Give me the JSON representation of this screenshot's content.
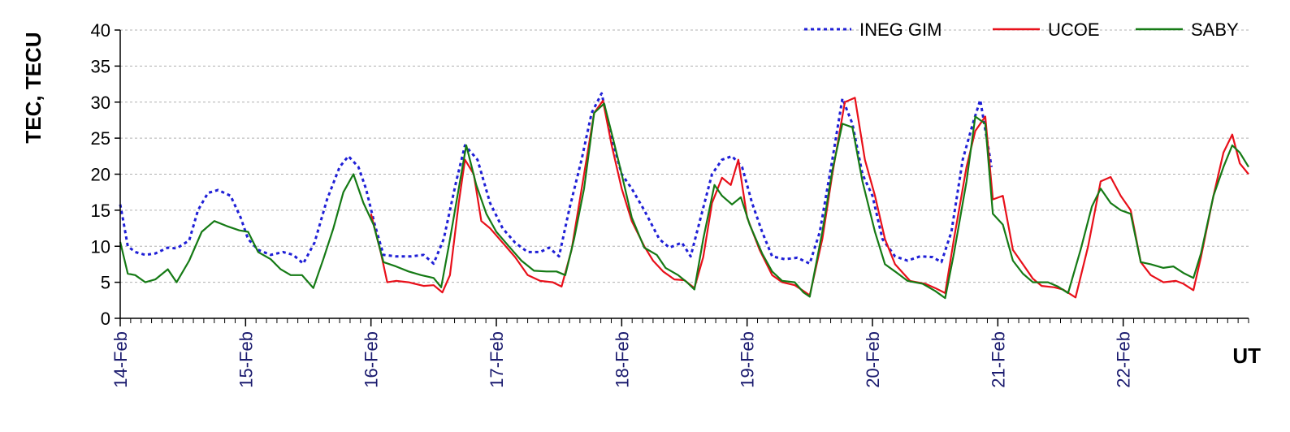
{
  "chart_data": {
    "type": "line",
    "ylabel": "TEC, TECU",
    "xlabel": "UT",
    "ylim": [
      0,
      40
    ],
    "yticks": [
      "0",
      "5",
      "10",
      "15",
      "20",
      "25",
      "30",
      "35",
      "40"
    ],
    "xlim": [
      0,
      9
    ],
    "xticks": [
      "14-Feb",
      "15-Feb",
      "16-Feb",
      "17-Feb",
      "18-Feb",
      "19-Feb",
      "20-Feb",
      "21-Feb",
      "22-Feb"
    ],
    "grid": "horizontal dashed",
    "legend_position": "top-right",
    "series": [
      {
        "name": "INEG GIM",
        "color": "#1f1fd6",
        "style": "dotted",
        "points": [
          [
            0,
            15.8
          ],
          [
            0.03,
            13
          ],
          [
            0.06,
            10
          ],
          [
            0.12,
            9.2
          ],
          [
            0.2,
            8.8
          ],
          [
            0.28,
            9
          ],
          [
            0.38,
            9.8
          ],
          [
            0.45,
            9.7
          ],
          [
            0.55,
            10.8
          ],
          [
            0.62,
            15
          ],
          [
            0.7,
            17.4
          ],
          [
            0.78,
            17.8
          ],
          [
            0.88,
            17
          ],
          [
            0.96,
            14
          ],
          [
            1.02,
            11
          ],
          [
            1.1,
            9.5
          ],
          [
            1.2,
            8.8
          ],
          [
            1.3,
            9.2
          ],
          [
            1.38,
            8.8
          ],
          [
            1.46,
            7.6
          ],
          [
            1.55,
            10.5
          ],
          [
            1.65,
            16.5
          ],
          [
            1.75,
            21
          ],
          [
            1.82,
            22.5
          ],
          [
            1.9,
            21
          ],
          [
            1.96,
            18
          ],
          [
            2.03,
            13
          ],
          [
            2.1,
            8.8
          ],
          [
            2.2,
            8.6
          ],
          [
            2.32,
            8.6
          ],
          [
            2.42,
            8.8
          ],
          [
            2.5,
            7.6
          ],
          [
            2.58,
            11
          ],
          [
            2.68,
            19
          ],
          [
            2.75,
            24
          ],
          [
            2.85,
            22
          ],
          [
            2.95,
            16
          ],
          [
            3.05,
            12.5
          ],
          [
            3.15,
            10.5
          ],
          [
            3.25,
            9.2
          ],
          [
            3.35,
            9.2
          ],
          [
            3.42,
            9.8
          ],
          [
            3.5,
            8.6
          ],
          [
            3.58,
            15
          ],
          [
            3.68,
            22
          ],
          [
            3.76,
            28.5
          ],
          [
            3.84,
            31.2
          ],
          [
            3.92,
            25
          ],
          [
            4.0,
            20
          ],
          [
            4.08,
            18
          ],
          [
            4.18,
            15
          ],
          [
            4.3,
            11
          ],
          [
            4.38,
            9.8
          ],
          [
            4.48,
            10.5
          ],
          [
            4.55,
            8.6
          ],
          [
            4.63,
            14
          ],
          [
            4.72,
            20
          ],
          [
            4.8,
            22
          ],
          [
            4.88,
            22.5
          ],
          [
            4.96,
            21
          ],
          [
            5.04,
            16
          ],
          [
            5.12,
            12
          ],
          [
            5.2,
            8.6
          ],
          [
            5.3,
            8.2
          ],
          [
            5.4,
            8.4
          ],
          [
            5.5,
            7.6
          ],
          [
            5.58,
            12
          ],
          [
            5.68,
            22
          ],
          [
            5.76,
            30.5
          ],
          [
            5.84,
            27
          ],
          [
            5.92,
            20
          ],
          [
            6.0,
            17
          ],
          [
            6.08,
            11
          ],
          [
            6.18,
            8.6
          ],
          [
            6.28,
            8
          ],
          [
            6.38,
            8.6
          ],
          [
            6.48,
            8.5
          ],
          [
            6.55,
            7.8
          ],
          [
            6.63,
            12
          ],
          [
            6.72,
            22
          ],
          [
            6.8,
            27
          ],
          [
            6.86,
            30.3
          ],
          [
            6.95,
            21
          ]
        ]
      },
      {
        "name": "UCOE",
        "color": "#e8101a",
        "style": "solid",
        "points": [
          [
            2.0,
            14.5
          ],
          [
            2.08,
            9
          ],
          [
            2.13,
            5
          ],
          [
            2.2,
            5.2
          ],
          [
            2.3,
            5
          ],
          [
            2.42,
            4.5
          ],
          [
            2.5,
            4.6
          ],
          [
            2.57,
            3.6
          ],
          [
            2.63,
            6
          ],
          [
            2.7,
            16
          ],
          [
            2.75,
            22
          ],
          [
            2.82,
            20
          ],
          [
            2.88,
            13.5
          ],
          [
            2.95,
            12.5
          ],
          [
            3.05,
            10.5
          ],
          [
            3.15,
            8.5
          ],
          [
            3.25,
            6
          ],
          [
            3.35,
            5.2
          ],
          [
            3.45,
            5
          ],
          [
            3.52,
            4.4
          ],
          [
            3.6,
            9.5
          ],
          [
            3.7,
            20
          ],
          [
            3.78,
            28.5
          ],
          [
            3.85,
            30.2
          ],
          [
            3.92,
            24
          ],
          [
            4.0,
            18
          ],
          [
            4.08,
            13.5
          ],
          [
            4.18,
            10
          ],
          [
            4.25,
            8
          ],
          [
            4.33,
            6.5
          ],
          [
            4.42,
            5.4
          ],
          [
            4.5,
            5.3
          ],
          [
            4.58,
            4.2
          ],
          [
            4.65,
            8.5
          ],
          [
            4.72,
            16
          ],
          [
            4.8,
            19.5
          ],
          [
            4.87,
            18.5
          ],
          [
            4.93,
            22
          ],
          [
            5.0,
            14
          ],
          [
            5.1,
            9.5
          ],
          [
            5.2,
            6
          ],
          [
            5.28,
            5
          ],
          [
            5.38,
            4.6
          ],
          [
            5.45,
            3.8
          ],
          [
            5.5,
            3.2
          ],
          [
            5.6,
            11
          ],
          [
            5.68,
            20
          ],
          [
            5.78,
            30
          ],
          [
            5.86,
            30.6
          ],
          [
            5.94,
            22
          ],
          [
            6.02,
            17
          ],
          [
            6.1,
            11
          ],
          [
            6.18,
            7.5
          ],
          [
            6.3,
            5.2
          ],
          [
            6.42,
            4.8
          ],
          [
            6.5,
            4.2
          ],
          [
            6.58,
            3.5
          ],
          [
            6.65,
            11
          ],
          [
            6.75,
            21
          ],
          [
            6.82,
            26
          ],
          [
            6.9,
            28
          ],
          [
            6.96,
            16.5
          ],
          [
            7.04,
            17
          ],
          [
            7.12,
            9.5
          ],
          [
            7.2,
            7.5
          ],
          [
            7.28,
            5.5
          ],
          [
            7.35,
            4.5
          ],
          [
            7.45,
            4.3
          ],
          [
            7.52,
            4
          ],
          [
            7.62,
            2.9
          ],
          [
            7.72,
            10
          ],
          [
            7.82,
            19
          ],
          [
            7.9,
            19.6
          ],
          [
            7.98,
            17
          ],
          [
            8.06,
            15
          ],
          [
            8.14,
            7.8
          ],
          [
            8.22,
            6
          ],
          [
            8.32,
            5
          ],
          [
            8.42,
            5.2
          ],
          [
            8.48,
            4.8
          ],
          [
            8.56,
            3.9
          ],
          [
            8.62,
            8.5
          ],
          [
            8.72,
            17
          ],
          [
            8.8,
            23
          ],
          [
            8.87,
            25.5
          ],
          [
            8.93,
            21.5
          ],
          [
            9.0,
            20
          ]
        ]
      },
      {
        "name": "SABY",
        "color": "#157a15",
        "style": "solid",
        "points": [
          [
            0,
            10.6
          ],
          [
            0.06,
            6.2
          ],
          [
            0.12,
            6.0
          ],
          [
            0.2,
            5
          ],
          [
            0.28,
            5.4
          ],
          [
            0.38,
            6.8
          ],
          [
            0.45,
            5.0
          ],
          [
            0.55,
            8
          ],
          [
            0.65,
            12
          ],
          [
            0.75,
            13.5
          ],
          [
            0.85,
            12.8
          ],
          [
            0.95,
            12.2
          ],
          [
            1.02,
            12
          ],
          [
            1.1,
            9.2
          ],
          [
            1.2,
            8.2
          ],
          [
            1.28,
            6.8
          ],
          [
            1.36,
            6
          ],
          [
            1.45,
            6
          ],
          [
            1.54,
            4.2
          ],
          [
            1.62,
            8.2
          ],
          [
            1.7,
            12.5
          ],
          [
            1.78,
            17.5
          ],
          [
            1.86,
            20
          ],
          [
            1.94,
            16
          ],
          [
            2.02,
            13
          ],
          [
            2.1,
            7.8
          ],
          [
            2.2,
            7.2
          ],
          [
            2.3,
            6.5
          ],
          [
            2.4,
            6
          ],
          [
            2.5,
            5.6
          ],
          [
            2.56,
            4.3
          ],
          [
            2.62,
            10
          ],
          [
            2.7,
            18
          ],
          [
            2.76,
            24
          ],
          [
            2.84,
            18.5
          ],
          [
            2.92,
            14.5
          ],
          [
            3.0,
            12
          ],
          [
            3.1,
            10
          ],
          [
            3.2,
            8
          ],
          [
            3.3,
            6.6
          ],
          [
            3.4,
            6.5
          ],
          [
            3.48,
            6.5
          ],
          [
            3.55,
            6
          ],
          [
            3.62,
            11
          ],
          [
            3.7,
            18
          ],
          [
            3.78,
            28.5
          ],
          [
            3.86,
            29.8
          ],
          [
            3.93,
            25
          ],
          [
            4.0,
            20
          ],
          [
            4.08,
            14
          ],
          [
            4.18,
            9.8
          ],
          [
            4.28,
            8.8
          ],
          [
            4.35,
            7
          ],
          [
            4.45,
            6
          ],
          [
            4.52,
            5
          ],
          [
            4.58,
            4
          ],
          [
            4.65,
            11
          ],
          [
            4.74,
            18.5
          ],
          [
            4.8,
            17
          ],
          [
            4.88,
            15.8
          ],
          [
            4.95,
            16.8
          ],
          [
            5.02,
            13
          ],
          [
            5.12,
            9
          ],
          [
            5.2,
            6.5
          ],
          [
            5.28,
            5.2
          ],
          [
            5.38,
            5
          ],
          [
            5.45,
            3.6
          ],
          [
            5.5,
            3
          ],
          [
            5.6,
            12
          ],
          [
            5.68,
            20.5
          ],
          [
            5.76,
            27
          ],
          [
            5.84,
            26.5
          ],
          [
            5.92,
            19
          ],
          [
            6.02,
            12
          ],
          [
            6.1,
            7.5
          ],
          [
            6.18,
            6.5
          ],
          [
            6.28,
            5.2
          ],
          [
            6.4,
            4.8
          ],
          [
            6.5,
            3.8
          ],
          [
            6.58,
            2.8
          ],
          [
            6.65,
            9
          ],
          [
            6.75,
            19
          ],
          [
            6.82,
            28
          ],
          [
            6.9,
            27
          ],
          [
            6.96,
            14.5
          ],
          [
            7.04,
            13
          ],
          [
            7.12,
            8
          ],
          [
            7.2,
            6.2
          ],
          [
            7.28,
            5
          ],
          [
            7.4,
            5
          ],
          [
            7.48,
            4.4
          ],
          [
            7.56,
            3.5
          ],
          [
            7.66,
            9.5
          ],
          [
            7.75,
            15.5
          ],
          [
            7.82,
            18
          ],
          [
            7.9,
            16
          ],
          [
            7.98,
            15
          ],
          [
            8.06,
            14.5
          ],
          [
            8.14,
            7.8
          ],
          [
            8.22,
            7.5
          ],
          [
            8.32,
            7
          ],
          [
            8.4,
            7.2
          ],
          [
            8.48,
            6.3
          ],
          [
            8.56,
            5.6
          ],
          [
            8.62,
            9
          ],
          [
            8.72,
            17
          ],
          [
            8.8,
            21
          ],
          [
            8.87,
            24
          ],
          [
            8.93,
            23
          ],
          [
            9.0,
            21
          ]
        ]
      }
    ]
  }
}
